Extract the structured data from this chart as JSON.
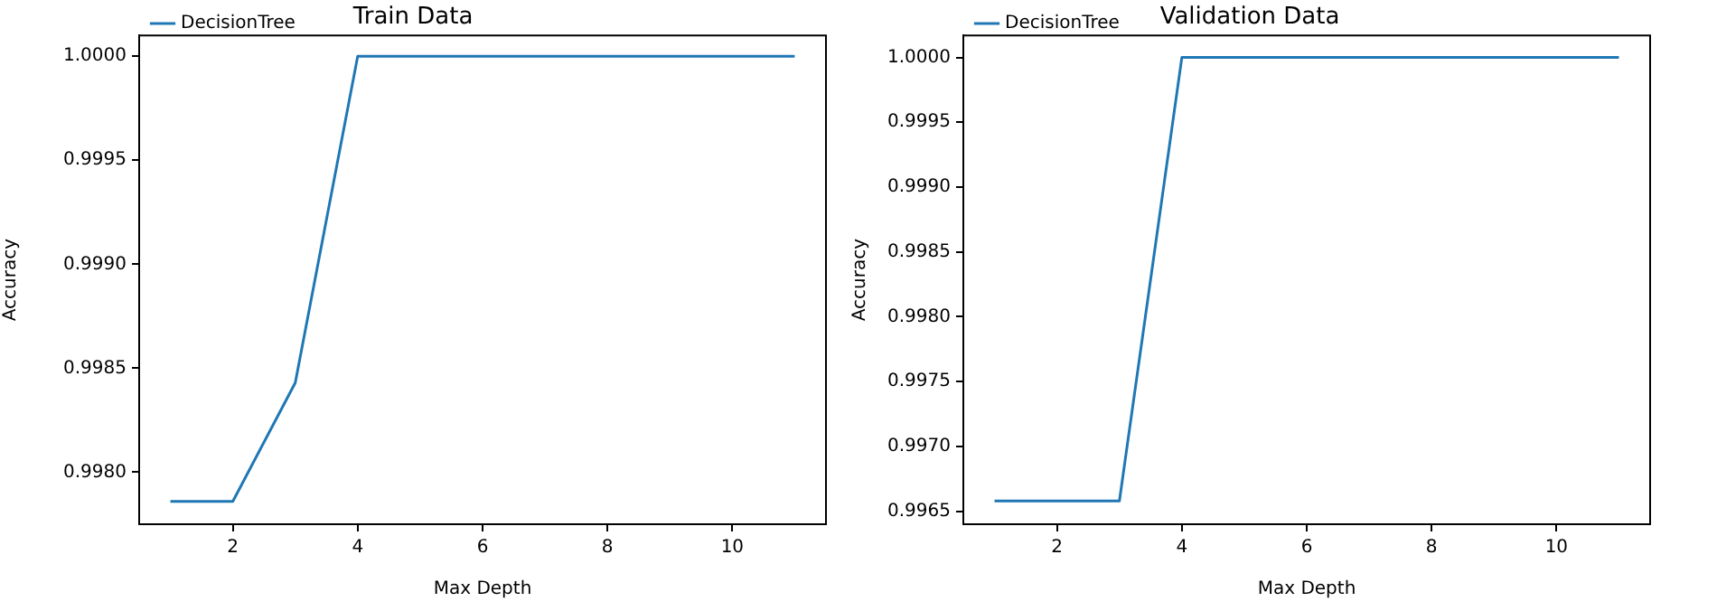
{
  "chart_data": [
    {
      "type": "line",
      "title": "Train Data",
      "xlabel": "Max Depth",
      "ylabel": "Accuracy",
      "x": [
        1,
        2,
        3,
        4,
        5,
        6,
        7,
        8,
        9,
        10,
        11
      ],
      "series": [
        {
          "name": "DecisionTree",
          "color": "#1f77b4",
          "values": [
            0.99786,
            0.99786,
            0.99843,
            1.0,
            1.0,
            1.0,
            1.0,
            1.0,
            1.0,
            1.0,
            1.0
          ]
        }
      ],
      "xlim": [
        0.5,
        11.5
      ],
      "xticks": [
        2,
        4,
        6,
        8,
        10
      ],
      "ylim": [
        0.99775,
        1.0001
      ],
      "yticks": [
        {
          "value": 0.998,
          "label": "0.9980"
        },
        {
          "value": 0.9985,
          "label": "0.9985"
        },
        {
          "value": 0.999,
          "label": "0.9990"
        },
        {
          "value": 0.9995,
          "label": "0.9995"
        },
        {
          "value": 1.0,
          "label": "1.0000"
        }
      ],
      "legend": "top left",
      "marker": "none"
    },
    {
      "type": "line",
      "title": "Validation Data",
      "xlabel": "Max Depth",
      "ylabel": "Accuracy",
      "x": [
        1,
        2,
        3,
        4,
        5,
        6,
        7,
        8,
        9,
        10,
        11
      ],
      "series": [
        {
          "name": "DecisionTree",
          "color": "#1f77b4",
          "values": [
            0.99658,
            0.99658,
            0.99658,
            1.0,
            1.0,
            1.0,
            1.0,
            1.0,
            1.0,
            1.0,
            1.0
          ]
        }
      ],
      "xlim": [
        0.5,
        11.5
      ],
      "xticks": [
        2,
        4,
        6,
        8,
        10
      ],
      "ylim": [
        0.9964,
        1.00017
      ],
      "yticks": [
        {
          "value": 0.9965,
          "label": "0.9965"
        },
        {
          "value": 0.997,
          "label": "0.9970"
        },
        {
          "value": 0.9975,
          "label": "0.9975"
        },
        {
          "value": 0.998,
          "label": "0.9980"
        },
        {
          "value": 0.9985,
          "label": "0.9985"
        },
        {
          "value": 0.999,
          "label": "0.9990"
        },
        {
          "value": 0.9995,
          "label": "0.9995"
        },
        {
          "value": 1.0,
          "label": "1.0000"
        }
      ],
      "legend": "top left",
      "marker": "none"
    }
  ]
}
